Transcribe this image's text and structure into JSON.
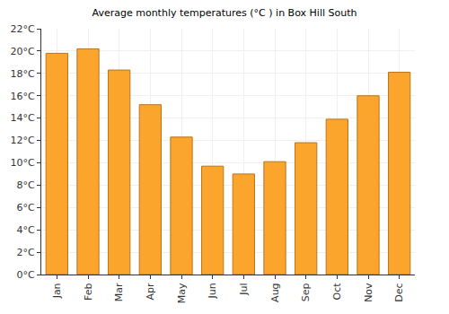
{
  "chart_data": {
    "type": "bar",
    "title": "Average monthly temperatures (°C ) in Box Hill South",
    "categories": [
      "Jan",
      "Feb",
      "Mar",
      "Apr",
      "May",
      "Jun",
      "Jul",
      "Aug",
      "Sep",
      "Oct",
      "Nov",
      "Dec"
    ],
    "values": [
      19.8,
      20.2,
      18.3,
      15.2,
      12.3,
      9.7,
      9.0,
      10.1,
      11.8,
      13.9,
      16.0,
      18.1
    ],
    "color": "#fba52c",
    "ylim": [
      0,
      22
    ],
    "yticks": [
      {
        "value": 0,
        "label": "0°C"
      },
      {
        "value": 2,
        "label": "2°C"
      },
      {
        "value": 4,
        "label": "4°C"
      },
      {
        "value": 6,
        "label": "6°C"
      },
      {
        "value": 8,
        "label": "8°C"
      },
      {
        "value": 10,
        "label": "10°C"
      },
      {
        "value": 12,
        "label": "12°C"
      },
      {
        "value": 14,
        "label": "14°C"
      },
      {
        "value": 16,
        "label": "16°C"
      },
      {
        "value": 18,
        "label": "18°C"
      },
      {
        "value": 20,
        "label": "20°C"
      },
      {
        "value": 22,
        "label": "22°C"
      }
    ],
    "grid": true
  }
}
